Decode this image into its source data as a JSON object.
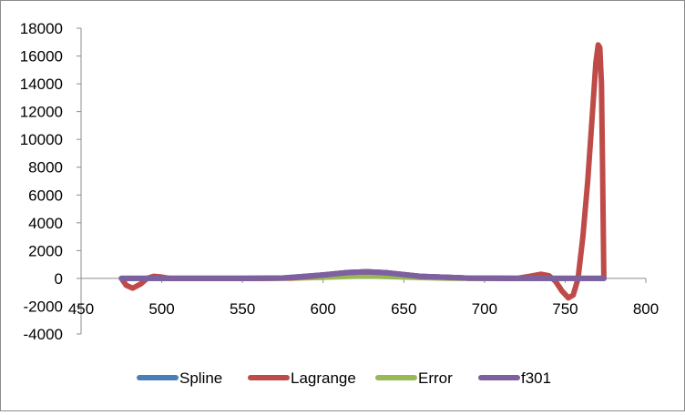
{
  "chart_data": {
    "type": "line",
    "title": "",
    "xlabel": "",
    "ylabel": "",
    "xlim": [
      450,
      800
    ],
    "ylim": [
      -4000,
      18000
    ],
    "x_ticks": [
      450,
      500,
      550,
      600,
      650,
      700,
      750,
      800
    ],
    "y_ticks": [
      -4000,
      -2000,
      0,
      2000,
      4000,
      6000,
      8000,
      10000,
      12000,
      14000,
      16000,
      18000
    ],
    "grid": false,
    "legend_position": "bottom",
    "series": [
      {
        "name": "Spline",
        "color": "#4a7ebb",
        "x": [
          475,
          500,
          525,
          550,
          575,
          600,
          615,
          627,
          640,
          660,
          690,
          720,
          750,
          774
        ],
        "y": [
          0,
          0,
          0,
          0,
          30,
          250,
          420,
          480,
          400,
          150,
          20,
          0,
          0,
          0
        ]
      },
      {
        "name": "Lagrange",
        "color": "#be4b48",
        "x": [
          475,
          478,
          482,
          487,
          491,
          495,
          500,
          505,
          510,
          530,
          560,
          580,
          600,
          615,
          627,
          640,
          660,
          690,
          720,
          728,
          735,
          740,
          744,
          748,
          752,
          755,
          758,
          761,
          764,
          767,
          769,
          770.5,
          771.5,
          772.5,
          773.2,
          774
        ],
        "y": [
          0,
          -500,
          -700,
          -400,
          0,
          150,
          100,
          0,
          0,
          0,
          0,
          30,
          250,
          420,
          480,
          400,
          150,
          20,
          0,
          150,
          300,
          200,
          -200,
          -900,
          -1400,
          -1200,
          0,
          3000,
          7000,
          12000,
          15500,
          16800,
          16600,
          14000,
          8000,
          0
        ]
      },
      {
        "name": "Error",
        "color": "#98b954",
        "x": [
          475,
          560,
          580,
          600,
          615,
          627,
          640,
          660,
          680,
          774
        ],
        "y": [
          0,
          0,
          20,
          80,
          140,
          170,
          130,
          60,
          10,
          0
        ]
      },
      {
        "name": "f301",
        "color": "#7d60a0",
        "x": [
          475,
          500,
          525,
          550,
          575,
          600,
          615,
          627,
          640,
          660,
          690,
          720,
          750,
          774
        ],
        "y": [
          0,
          0,
          0,
          0,
          30,
          250,
          420,
          480,
          400,
          150,
          20,
          0,
          0,
          0
        ]
      }
    ]
  }
}
